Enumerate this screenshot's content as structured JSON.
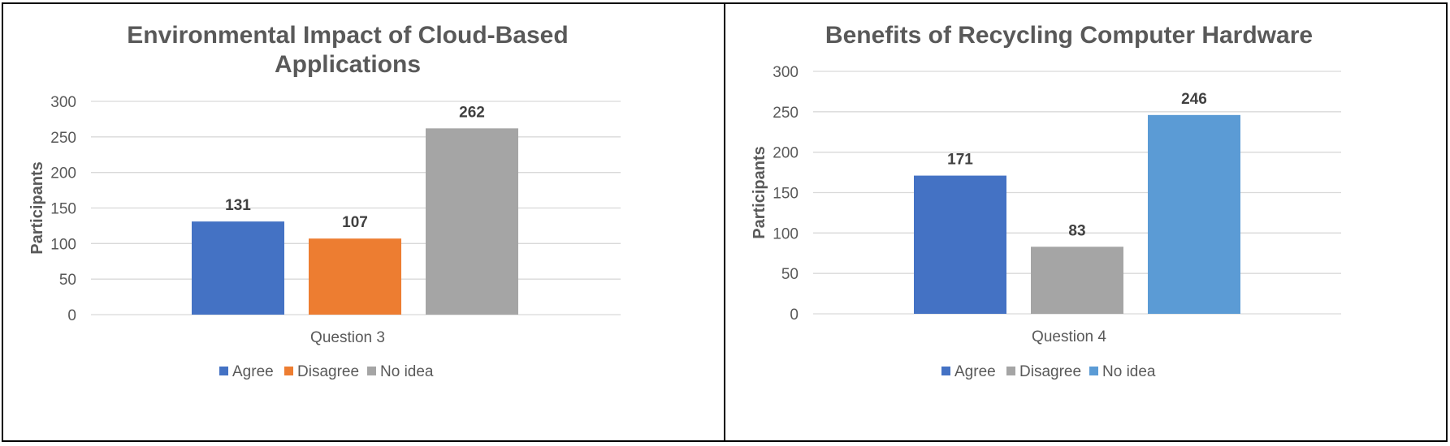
{
  "chart_data": [
    {
      "type": "bar",
      "title_lines": [
        "Environmental Impact of Cloud-Based",
        "Applications"
      ],
      "title": "Environmental Impact of Cloud-Based Applications",
      "xlabel": "",
      "ylabel": "Participants",
      "categories": [
        "Question 3"
      ],
      "series": [
        {
          "name": "Agree",
          "values": [
            131
          ],
          "color": "#4472C4"
        },
        {
          "name": "Disagree",
          "values": [
            107
          ],
          "color": "#ED7D31"
        },
        {
          "name": "No idea",
          "values": [
            262
          ],
          "color": "#A5A5A5"
        }
      ],
      "ylim": [
        0,
        300
      ],
      "yticks": [
        0,
        50,
        100,
        150,
        200,
        250,
        300
      ],
      "grid": true,
      "legend": "bottom"
    },
    {
      "type": "bar",
      "title_lines": [
        "Benefits of Recycling Computer Hardware"
      ],
      "title": "Benefits of Recycling Computer Hardware",
      "xlabel": "",
      "ylabel": "Participants",
      "categories": [
        "Question 4"
      ],
      "series": [
        {
          "name": "Agree",
          "values": [
            171
          ],
          "color": "#4472C4"
        },
        {
          "name": "Disagree",
          "values": [
            83
          ],
          "color": "#A5A5A5"
        },
        {
          "name": "No idea",
          "values": [
            246
          ],
          "color": "#5B9BD5"
        }
      ],
      "ylim": [
        0,
        300
      ],
      "yticks": [
        0,
        50,
        100,
        150,
        200,
        250,
        300
      ],
      "grid": true,
      "legend": "bottom"
    }
  ]
}
